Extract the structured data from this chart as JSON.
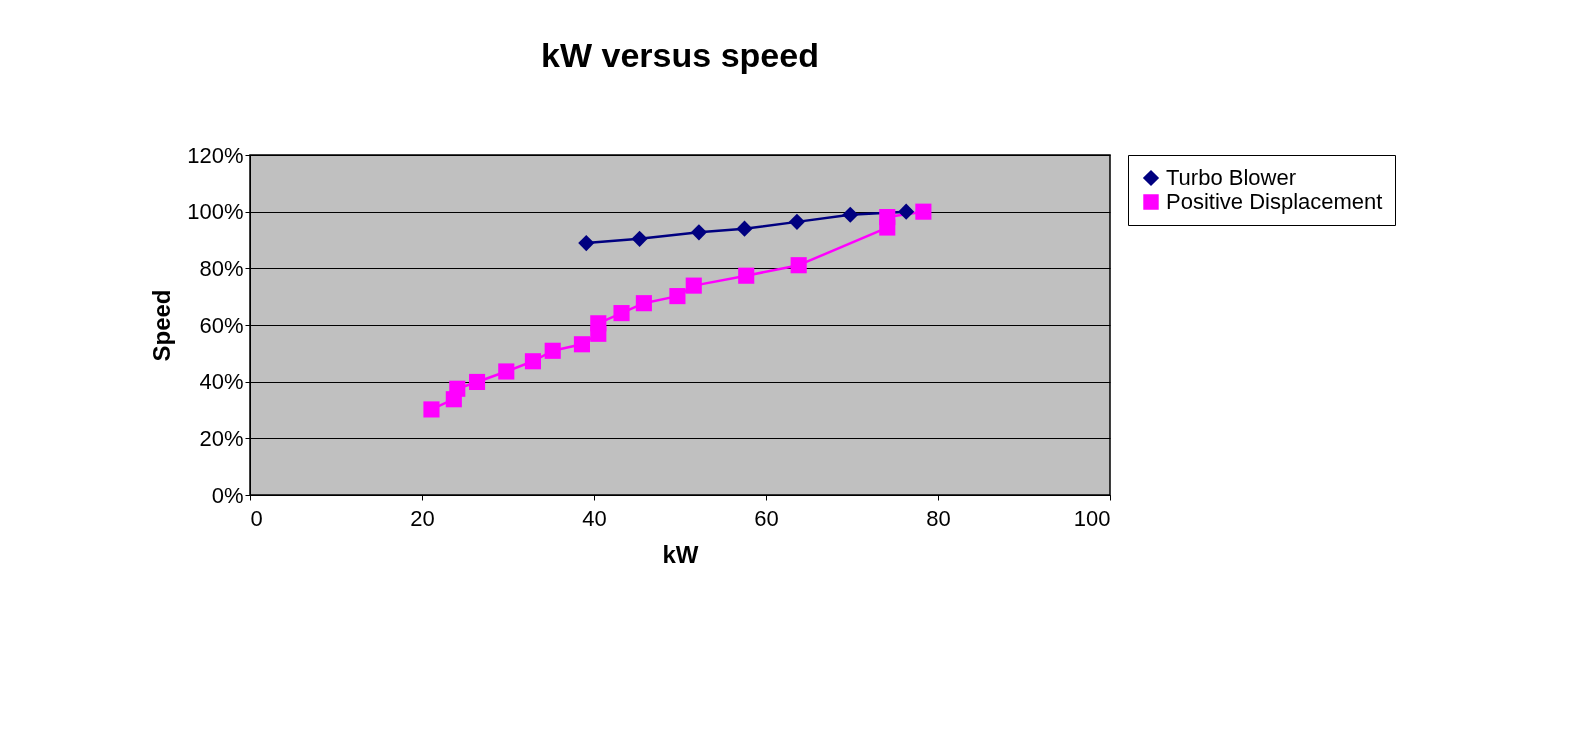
{
  "chart_data": {
    "type": "line",
    "title": "kW versus speed",
    "xlabel": "kW",
    "ylabel": "Speed",
    "xlim": [
      0,
      100
    ],
    "xticks": [
      0,
      20,
      40,
      60,
      80,
      100
    ],
    "ylim": [
      0,
      120
    ],
    "yticks": [
      {
        "value": 0,
        "label": "0%"
      },
      {
        "value": 20,
        "label": "20%"
      },
      {
        "value": 40,
        "label": "40%"
      },
      {
        "value": 60,
        "label": "60%"
      },
      {
        "value": 80,
        "label": "80%"
      },
      {
        "value": 100,
        "label": "100%"
      },
      {
        "value": 120,
        "label": "120%"
      }
    ],
    "grid": "y",
    "legend": "right",
    "series": [
      {
        "name": "Turbo Blower",
        "color": "#000080",
        "marker": "diamond",
        "x": [
          39.1,
          45.3,
          52.2,
          57.5,
          63.6,
          69.8,
          76.3
        ],
        "values": [
          88.9,
          90.4,
          92.7,
          94.0,
          96.4,
          98.9,
          100
        ]
      },
      {
        "name": "Positive Displacement",
        "color": "#ff00ff",
        "marker": "square",
        "x": [
          21.1,
          23.7,
          24.1,
          26.4,
          29.8,
          32.9,
          35.2,
          38.6,
          40.5,
          40.5,
          43.2,
          45.8,
          49.7,
          51.6,
          57.7,
          63.8,
          74.1,
          74.1,
          78.3
        ],
        "values": [
          30.2,
          33.8,
          37.5,
          39.9,
          43.6,
          47.2,
          50.9,
          53.2,
          56.9,
          60.6,
          64.2,
          67.7,
          70.2,
          73.9,
          77.4,
          81.1,
          94.4,
          98.1,
          100
        ]
      }
    ]
  }
}
